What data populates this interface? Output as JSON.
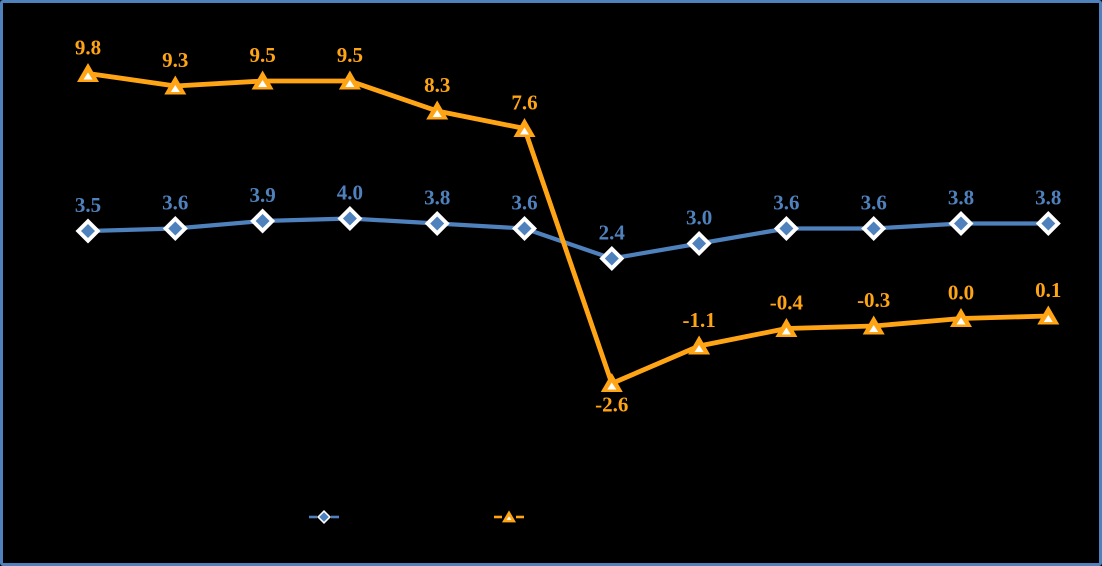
{
  "canvas": {
    "background_color": "#000000",
    "border_color": "#4F81BD"
  },
  "chart_data": {
    "type": "line",
    "title": "",
    "xlabel": "",
    "ylabel": "",
    "axes_visible": false,
    "gridlines_visible": false,
    "x_count": 12,
    "x_index": [
      1,
      2,
      3,
      4,
      5,
      6,
      7,
      8,
      9,
      10,
      11,
      12
    ],
    "implied_ylim": [
      -3.5,
      11
    ],
    "data_labels": {
      "visible": true,
      "decimals": 1
    },
    "series": [
      {
        "name": "diamond-series",
        "marker": "diamond",
        "color": "#4F81BD",
        "marker_fill": "#4F81BD",
        "marker_ring": "#FFFFFF",
        "values": [
          3.5,
          3.6,
          3.9,
          4.0,
          3.8,
          3.6,
          2.4,
          3.0,
          3.6,
          3.6,
          3.8,
          3.8
        ],
        "label_below": []
      },
      {
        "name": "triangle-series",
        "marker": "triangle",
        "color": "#FFA515",
        "marker_fill": "#FFA515",
        "marker_ring": "#FFFFFF",
        "values": [
          9.8,
          9.3,
          9.5,
          9.5,
          8.3,
          7.6,
          -2.6,
          -1.1,
          -0.4,
          -0.3,
          0.0,
          0.1
        ],
        "label_below": [
          6
        ]
      }
    ],
    "legend": {
      "position": "bottom",
      "text_visible": false,
      "entries": [
        {
          "marker": "diamond",
          "color": "#4F81BD",
          "label": ""
        },
        {
          "marker": "triangle",
          "color": "#FFA515",
          "label": ""
        }
      ]
    }
  }
}
